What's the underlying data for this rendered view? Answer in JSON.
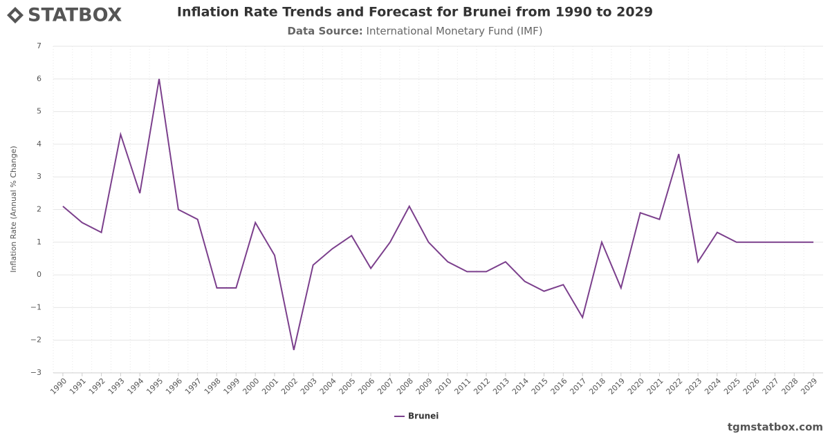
{
  "logo": "STATBOX",
  "footer": "tgmstatbox.com",
  "chart_data": {
    "type": "line",
    "title": "Inflation Rate Trends and Forecast for Brunei from 1990 to 2029",
    "subtitle_label": "Data Source:",
    "subtitle": "International Monetary Fund (IMF)",
    "y_label": "Inflation Rate (Annual % Change)",
    "categories": [
      "1990",
      "1991",
      "1992",
      "1993",
      "1994",
      "1995",
      "1996",
      "1997",
      "1998",
      "1999",
      "2000",
      "2001",
      "2002",
      "2003",
      "2004",
      "2005",
      "2006",
      "2007",
      "2008",
      "2009",
      "2010",
      "2011",
      "2012",
      "2013",
      "2014",
      "2015",
      "2016",
      "2017",
      "2018",
      "2019",
      "2020",
      "2021",
      "2022",
      "2023",
      "2024",
      "2025",
      "2026",
      "2027",
      "2028",
      "2029"
    ],
    "series": [
      {
        "name": "Brunei",
        "color": "#7b3f8c",
        "values": [
          2.1,
          1.6,
          1.3,
          4.3,
          2.5,
          6.0,
          2.0,
          1.7,
          -0.4,
          -0.4,
          1.6,
          0.6,
          -2.3,
          0.3,
          0.8,
          1.2,
          0.2,
          1.0,
          2.1,
          1.0,
          0.4,
          0.1,
          0.1,
          0.4,
          -0.2,
          -0.5,
          -0.3,
          -1.3,
          1.0,
          -0.4,
          1.9,
          1.7,
          3.7,
          0.4,
          1.3,
          1.0,
          1.0,
          1.0,
          1.0,
          1.0
        ]
      }
    ],
    "ylim": [
      -3,
      7
    ],
    "yticks": [
      {
        "value": -3,
        "label": "−3"
      },
      {
        "value": -2,
        "label": "−2"
      },
      {
        "value": -1,
        "label": "−1"
      },
      0,
      1,
      2,
      3,
      4,
      5,
      6,
      7
    ],
    "grid": true,
    "legend": "bottom"
  }
}
